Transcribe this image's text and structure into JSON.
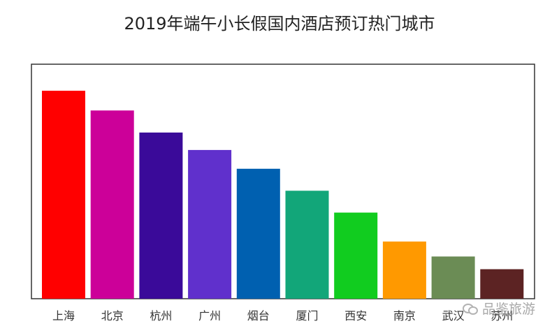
{
  "chart_data": {
    "type": "bar",
    "title": "2019年端午小长假国内酒店预订热门城市",
    "xlabel": "",
    "ylabel": "",
    "grid": false,
    "legend": "none",
    "ylim": [
      0,
      100
    ],
    "categories": [
      "上海",
      "北京",
      "杭州",
      "广州",
      "烟台",
      "厦门",
      "西安",
      "南京",
      "武汉",
      "苏州"
    ],
    "values": [
      100,
      90.5,
      79.9,
      71.5,
      62.5,
      51.9,
      41.4,
      27.5,
      20.3,
      14.2
    ],
    "colors": [
      "#ff0000",
      "#cc0099",
      "#3a0a99",
      "#6030cc",
      "#0060b0",
      "#12a679",
      "#11cc1f",
      "#ff9900",
      "#6b8c55",
      "#5c2323"
    ]
  },
  "watermark": {
    "text": "品鉴旅游",
    "icon": "wechat-icon"
  }
}
